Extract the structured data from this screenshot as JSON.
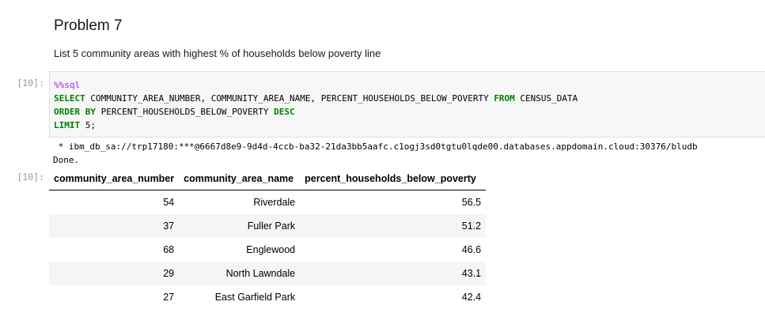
{
  "markdown": {
    "heading": "Problem 7",
    "description": "List 5 community areas with highest % of households below poverty line"
  },
  "input_prompt": "[10]:",
  "output_prompt": "[10]:",
  "code": {
    "magic": "%%sql",
    "line2_kw1": "SELECT",
    "line2_text": " COMMUNITY_AREA_NUMBER, COMMUNITY_AREA_NAME, PERCENT_HOUSEHOLDS_BELOW_POVERTY ",
    "line2_kw2": "FROM",
    "line2_tail": " CENSUS_DATA",
    "line3_kw1": "ORDER BY",
    "line3_text": " PERCENT_HOUSEHOLDS_BELOW_POVERTY ",
    "line3_kw2": "DESC",
    "line4_kw": "LIMIT",
    "line4_text": " 5;"
  },
  "stream_output": {
    "connection": " * ibm_db_sa://trp17180:***@6667d8e9-9d4d-4ccb-ba32-21da3bb5aafc.c1ogj3sd0tgtu0lqde00.databases.appdomain.cloud:30376/bludb",
    "done": "Done."
  },
  "table": {
    "columns": [
      "community_area_number",
      "community_area_name",
      "percent_households_below_poverty"
    ],
    "rows": [
      [
        "54",
        "Riverdale",
        "56.5"
      ],
      [
        "37",
        "Fuller Park",
        "51.2"
      ],
      [
        "68",
        "Englewood",
        "46.6"
      ],
      [
        "29",
        "North Lawndale",
        "43.1"
      ],
      [
        "27",
        "East Garfield Park",
        "42.4"
      ]
    ]
  },
  "colors": {
    "keyword": "#008000",
    "magic": "#a020f0",
    "prompt": "#9a9a9a",
    "code_bg": "#f7f7f7",
    "striped_row": "#f5f5f5"
  }
}
